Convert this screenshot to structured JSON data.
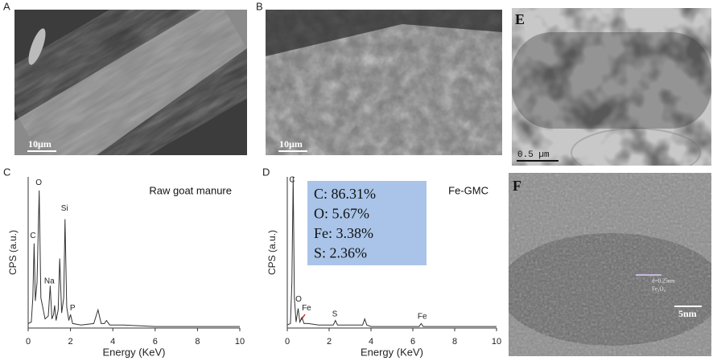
{
  "images": [
    {
      "label": "A",
      "scale_bar": "10µm"
    },
    {
      "label": "B",
      "scale_bar": "10µm"
    },
    {
      "label": "E",
      "scale_bar": "0.5 µm"
    },
    {
      "label": "F",
      "scale_bar": "5nm",
      "notes": [
        "d=0.25nm",
        "Fe₃O₄"
      ]
    }
  ],
  "chart_data": [
    {
      "type": "line",
      "label": "C",
      "title": "Raw goat manure",
      "x_label": "Energy (KeV)",
      "y_label": "CPS (a.u.)",
      "color": "#333333",
      "xlim": [
        0,
        10
      ],
      "xticks": [
        0,
        2,
        4,
        6,
        8,
        10
      ],
      "ylim": [
        0,
        100
      ],
      "x": [
        0,
        0.15,
        0.22,
        0.28,
        0.34,
        0.42,
        0.52,
        0.6,
        0.8,
        0.95,
        1.04,
        1.12,
        1.2,
        1.25,
        1.32,
        1.42,
        1.49,
        1.58,
        1.68,
        1.74,
        1.82,
        1.92,
        2.0,
        2.1,
        2.5,
        3.1,
        3.3,
        3.45,
        3.6,
        3.7,
        3.85,
        4.5,
        6,
        8,
        10
      ],
      "values": [
        3,
        4,
        20,
        56,
        18,
        30,
        91,
        20,
        6,
        8,
        28,
        6,
        9,
        15,
        5,
        12,
        46,
        10,
        20,
        72,
        14,
        5,
        9,
        3,
        2,
        3,
        12,
        3,
        3,
        5,
        2,
        2,
        1,
        1,
        1
      ],
      "annotations": [
        {
          "text": "C",
          "x": 0.23,
          "y": 61
        },
        {
          "text": "O",
          "x": 0.5,
          "y": 96
        },
        {
          "text": "Si",
          "x": 1.72,
          "y": 79
        },
        {
          "text": "Na",
          "x": 1.0,
          "y": 31
        },
        {
          "text": "P",
          "x": 2.1,
          "y": 13
        }
      ]
    },
    {
      "type": "line",
      "label": "D",
      "title": "Fe-GMC",
      "x_label": "Energy (KeV)",
      "y_label": "CPS (a.u.)",
      "color": "#333333",
      "xlim": [
        0,
        10
      ],
      "xticks": [
        0,
        2,
        4,
        6,
        8,
        10
      ],
      "ylim": [
        0,
        100
      ],
      "x": [
        0,
        0.15,
        0.22,
        0.28,
        0.34,
        0.42,
        0.52,
        0.6,
        0.7,
        0.8,
        1.0,
        1.5,
        2.2,
        2.3,
        2.4,
        3.0,
        3.6,
        3.7,
        3.8,
        4.0,
        6.3,
        6.4,
        6.5,
        8,
        10
      ],
      "values": [
        2,
        3,
        30,
        100,
        20,
        4,
        13,
        4,
        7,
        3,
        3,
        2,
        2,
        5,
        2,
        2,
        2,
        6,
        2,
        1,
        1,
        3,
        1,
        1,
        1
      ],
      "annotations": [
        {
          "text": "C",
          "x": 0.23,
          "y": 98
        },
        {
          "text": "O",
          "x": 0.54,
          "y": 19
        },
        {
          "text": "Fe",
          "x": 0.92,
          "y": 13
        },
        {
          "text": "S",
          "x": 2.27,
          "y": 9
        },
        {
          "text": "Fe",
          "x": 6.45,
          "y": 7.5
        }
      ],
      "composition": [
        "C: 86.31%",
        "O: 5.67%",
        "Fe: 3.38%",
        "S: 2.36%"
      ]
    }
  ]
}
